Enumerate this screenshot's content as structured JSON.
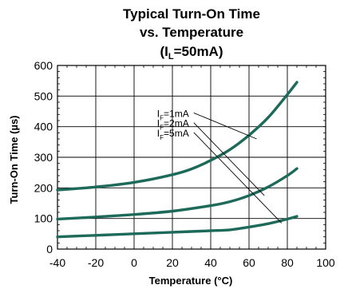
{
  "chart_data": {
    "type": "line",
    "title_lines": [
      "Typical Turn-On Time",
      "vs. Temperature"
    ],
    "title_condition": {
      "prefix": "(I",
      "sub": "L",
      "suffix": "=50mA)"
    },
    "xlabel": "Temperature (°C)",
    "ylabel": "Turn-On Time (µs)",
    "xlim": [
      -40,
      100
    ],
    "ylim": [
      0,
      600
    ],
    "x_ticks": [
      "-40",
      "-20",
      "0",
      "20",
      "40",
      "60",
      "80",
      "100"
    ],
    "y_ticks": [
      "0",
      "100",
      "200",
      "300",
      "400",
      "500",
      "600"
    ],
    "grid": true,
    "line_color": "#1d6a5a",
    "series": [
      {
        "name": "IF=1mA",
        "label_main": "I",
        "label_sub": "F",
        "label_rest": "=1mA",
        "points": [
          [
            -40,
            193
          ],
          [
            -20,
            203
          ],
          [
            0,
            218
          ],
          [
            20,
            243
          ],
          [
            30,
            262
          ],
          [
            40,
            290
          ],
          [
            50,
            325
          ],
          [
            60,
            372
          ],
          [
            70,
            430
          ],
          [
            80,
            505
          ],
          [
            85,
            545
          ]
        ]
      },
      {
        "name": "IF=2mA",
        "label_main": "I",
        "label_sub": "F",
        "label_rest": "=2mA",
        "points": [
          [
            -40,
            98
          ],
          [
            -20,
            105
          ],
          [
            0,
            113
          ],
          [
            20,
            124
          ],
          [
            40,
            142
          ],
          [
            50,
            155
          ],
          [
            60,
            175
          ],
          [
            70,
            203
          ],
          [
            80,
            240
          ],
          [
            85,
            263
          ]
        ]
      },
      {
        "name": "IF=5mA",
        "label_main": "I",
        "label_sub": "F",
        "label_rest": "=5mA",
        "points": [
          [
            -40,
            40
          ],
          [
            -20,
            45
          ],
          [
            0,
            50
          ],
          [
            20,
            55
          ],
          [
            40,
            60
          ],
          [
            50,
            63
          ],
          [
            60,
            72
          ],
          [
            70,
            83
          ],
          [
            80,
            98
          ],
          [
            85,
            107
          ]
        ]
      }
    ],
    "label_positions": [
      {
        "text_at": [
          12,
          432
        ],
        "leader_to": [
          64,
          360
        ]
      },
      {
        "text_at": [
          12,
          400
        ],
        "leader_to": [
          68,
          175
        ]
      },
      {
        "text_at": [
          12,
          368
        ],
        "leader_to": [
          77,
          85
        ]
      }
    ]
  }
}
